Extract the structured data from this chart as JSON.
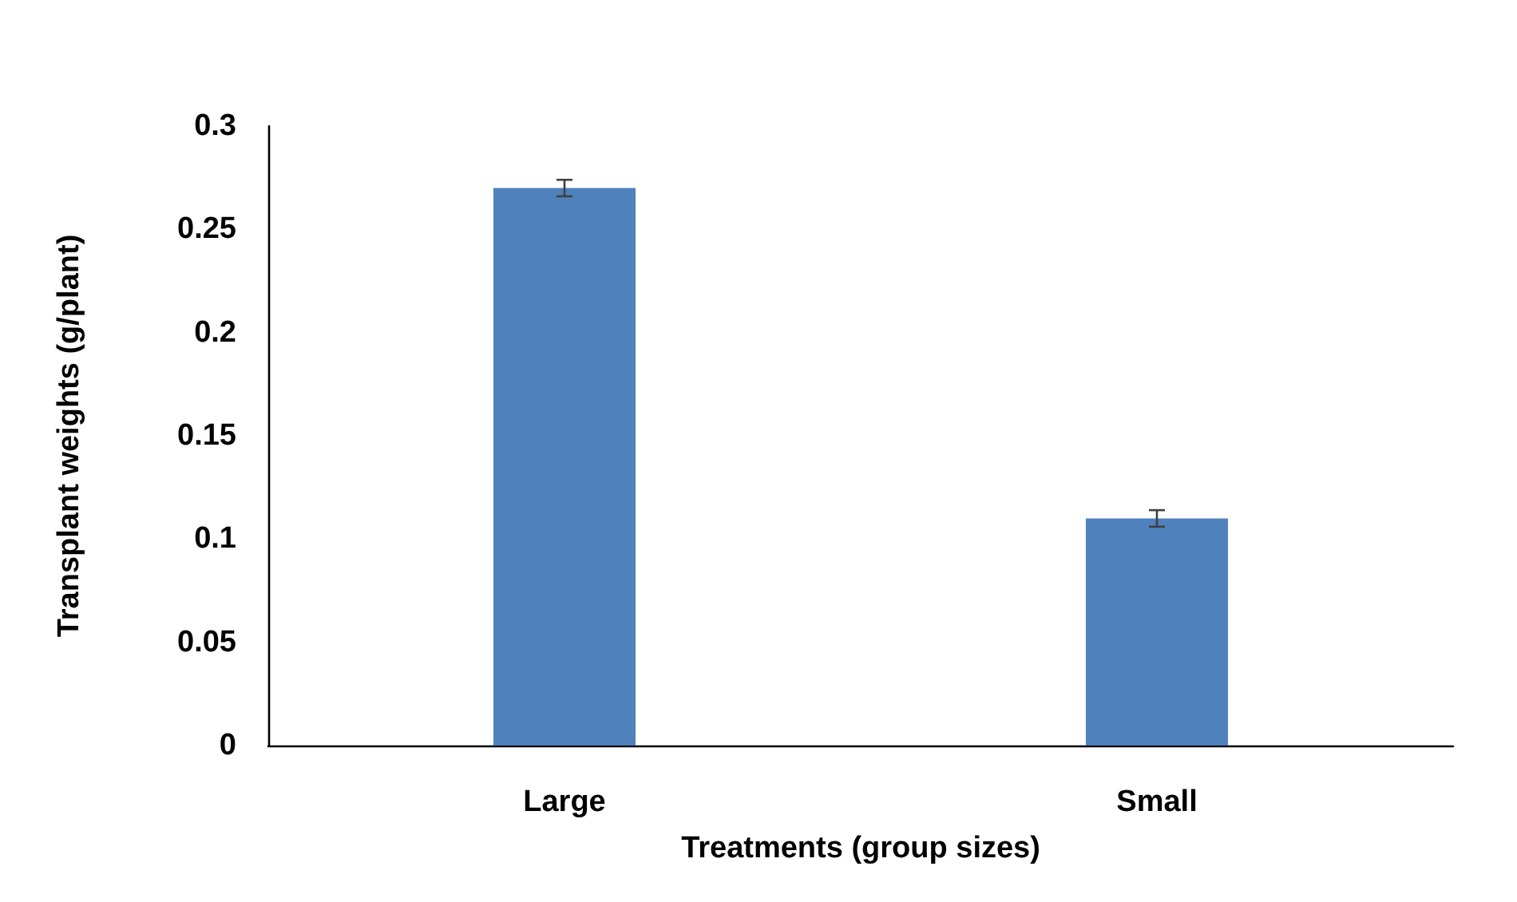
{
  "chart_data": {
    "type": "bar",
    "xlabel": "Treatments (group sizes)",
    "ylabel": "Transplant weights (g/plant)",
    "categories": [
      "Large",
      "Small"
    ],
    "values": [
      0.27,
      0.11
    ],
    "errors": [
      0.004,
      0.004
    ],
    "color": "#4f81bd",
    "ylim": [
      0,
      0.3
    ],
    "yticks": [
      0,
      0.05,
      0.1,
      0.15,
      0.2,
      0.25,
      0.3
    ],
    "grid": false
  }
}
